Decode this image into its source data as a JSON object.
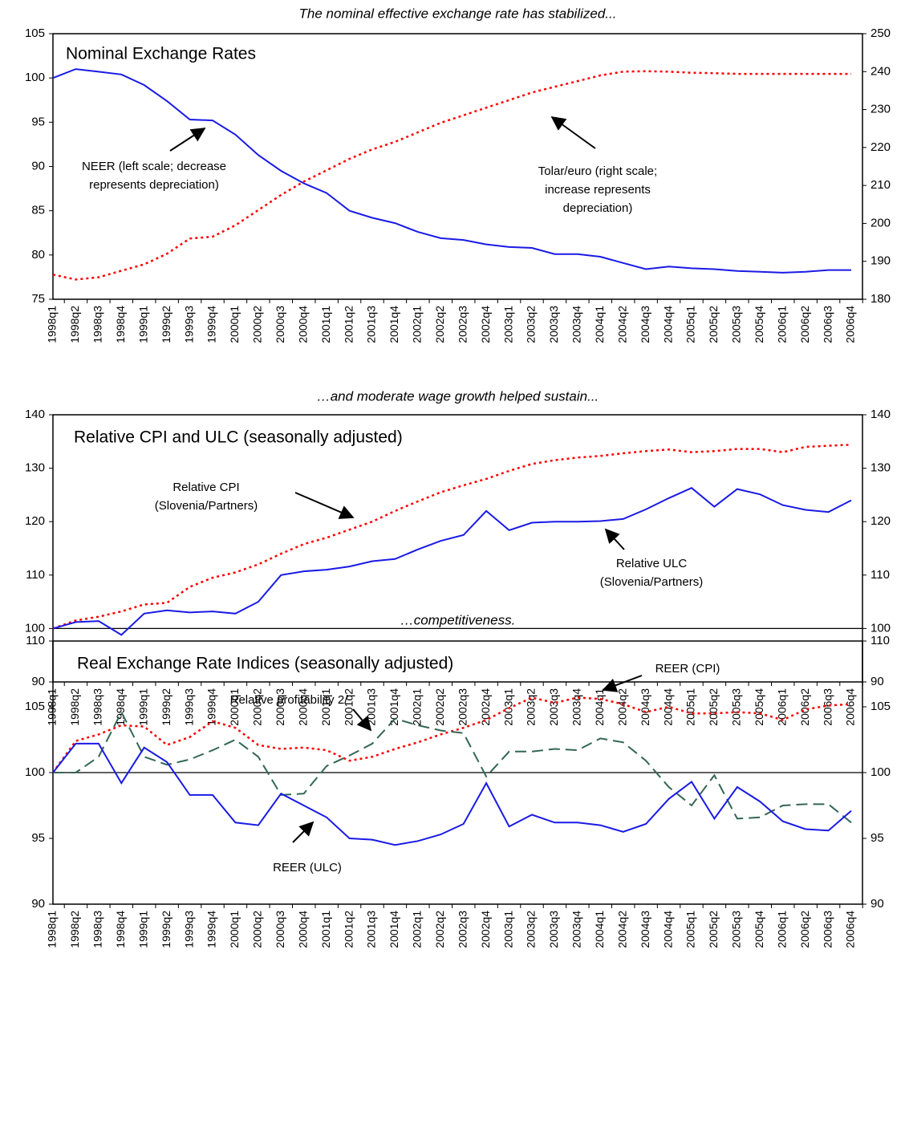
{
  "chart_data": [
    {
      "type": "line",
      "heading": "The nominal effective exchange rate has stabilized...",
      "title": "Nominal Exchange Rates",
      "categories": [
        "1998q1",
        "1998q2",
        "1998q3",
        "1998q4",
        "1999q1",
        "1999q2",
        "1999q3",
        "1999q4",
        "2000q1",
        "2000q2",
        "2000q3",
        "2000q4",
        "2001q1",
        "2001q2",
        "2001q3",
        "2001q4",
        "2002q1",
        "2002q2",
        "2002q3",
        "2002q4",
        "2003q1",
        "2003q2",
        "2003q3",
        "2003q4",
        "2004q1",
        "2004q2",
        "2004q3",
        "2004q4",
        "2005q1",
        "2005q2",
        "2005q3",
        "2005q4",
        "2006q1",
        "2006q2",
        "2006q3",
        "2006q4"
      ],
      "ylim": [
        75,
        105
      ],
      "yticks": [
        75,
        80,
        85,
        90,
        95,
        100,
        105
      ],
      "y2lim": [
        180,
        250
      ],
      "y2ticks": [
        180,
        190,
        200,
        210,
        220,
        230,
        240,
        250
      ],
      "series": [
        {
          "name": "NEER",
          "color": "#1a1ae6",
          "style": "solid",
          "values": [
            100,
            101,
            100.7,
            100.4,
            99.2,
            97.4,
            95.3,
            95.2,
            93.6,
            91.3,
            89.5,
            88.1,
            87.0,
            85.0,
            84.2,
            83.6,
            82.6,
            81.9,
            81.7,
            81.2,
            80.9,
            80.8,
            80.1,
            80.1,
            79.8,
            79.1,
            78.4,
            78.7,
            78.5,
            78.4,
            78.2,
            78.1,
            78.0,
            78.1,
            78.3,
            78.3
          ]
        },
        {
          "name": "Tolar/euro",
          "color": "#ff0000",
          "style": "dotted",
          "axis": "y2",
          "values": [
            186.5,
            185.2,
            185.8,
            187.5,
            189.2,
            192,
            196,
            196.5,
            199.5,
            203.5,
            207.5,
            211,
            214,
            217,
            219.5,
            221.5,
            224,
            226.5,
            228.5,
            230.5,
            232.5,
            234.5,
            236,
            237.5,
            239,
            240,
            240.1,
            240,
            239.7,
            239.6,
            239.4,
            239.4,
            239.4,
            239.4,
            239.4,
            239.4
          ]
        }
      ],
      "annotations": [
        {
          "lines": [
            "NEER (left scale; decrease",
            "represents depreciation)"
          ]
        },
        {
          "lines": [
            "Tolar/euro (right scale;",
            "increase represents",
            "depreciation)"
          ]
        }
      ]
    },
    {
      "type": "line",
      "heading": "…and moderate wage growth helped sustain...",
      "title": "Relative CPI and ULC (seasonally adjusted)",
      "categories": [
        "1998q1",
        "1998q2",
        "1998q3",
        "1998q4",
        "1999q1",
        "1999q2",
        "1999q3",
        "1999q4",
        "2000q1",
        "2000q2",
        "2000q3",
        "2000q4",
        "2001q1",
        "2001q2",
        "2001q3",
        "2001q4",
        "2002q1",
        "2002q2",
        "2002q3",
        "2002q4",
        "2003q1",
        "2003q2",
        "2003q3",
        "2003q4",
        "2004q1",
        "2004q2",
        "2004q3",
        "2004q4",
        "2005q1",
        "2005q2",
        "2005q3",
        "2005q4",
        "2006q1",
        "2006q2",
        "2006q3",
        "2006q4"
      ],
      "ylim": [
        90,
        140
      ],
      "yticks": [
        90,
        100,
        110,
        120,
        130,
        140
      ],
      "y2lim": [
        90,
        140
      ],
      "y2ticks": [
        90,
        100,
        110,
        120,
        130,
        140
      ],
      "reference_line": 100,
      "series": [
        {
          "name": "Relative CPI",
          "color": "#ff0000",
          "style": "dotted",
          "values": [
            100,
            101.5,
            102.2,
            103.2,
            104.5,
            104.8,
            107.8,
            109.5,
            110.5,
            112,
            114,
            115.8,
            117,
            118.5,
            120,
            122,
            123.8,
            125.5,
            126.8,
            128,
            129.5,
            130.8,
            131.5,
            132,
            132.3,
            132.8,
            133.2,
            133.5,
            133,
            133.2,
            133.6,
            133.6,
            133,
            134,
            134.2,
            134.4
          ]
        },
        {
          "name": "Relative ULC",
          "color": "#1a1ae6",
          "style": "solid",
          "values": [
            100,
            101.2,
            101.4,
            98.8,
            102.8,
            103.4,
            103,
            103.2,
            102.8,
            105,
            110,
            110.7,
            111,
            111.6,
            112.6,
            113,
            114.8,
            116.4,
            117.5,
            122,
            118.4,
            119.8,
            120,
            120,
            120.1,
            120.5,
            122.3,
            124.4,
            126.3,
            122.8,
            126.1,
            125.1,
            123.1,
            122.2,
            121.8,
            124
          ]
        }
      ],
      "annotations": [
        {
          "lines": [
            "Relative CPI",
            "(Slovenia/Partners)"
          ]
        },
        {
          "lines": [
            "Relative ULC",
            "(Slovenia/Partners)"
          ]
        }
      ]
    },
    {
      "type": "line",
      "heading": "…competitiveness.",
      "title": "Real Exchange Rate Indices (seasonally adjusted)",
      "categories": [
        "1998q1",
        "1998q2",
        "1998q3",
        "1998q4",
        "1999q1",
        "1999q2",
        "1999q3",
        "1999q4",
        "2000q1",
        "2000q2",
        "2000q3",
        "2000q4",
        "2001q1",
        "2001q2",
        "2001q3",
        "2001q4",
        "2002q1",
        "2002q2",
        "2002q3",
        "2002q4",
        "2003q1",
        "2003q2",
        "2003q3",
        "2003q4",
        "2004q1",
        "2004q2",
        "2004q3",
        "2004q4",
        "2005q1",
        "2005q2",
        "2005q3",
        "2005q4",
        "2006q1",
        "2006q2",
        "2006q3",
        "2006q4"
      ],
      "ylim": [
        90,
        110
      ],
      "yticks": [
        90,
        95,
        100,
        105,
        110
      ],
      "y2lim": [
        90,
        110
      ],
      "y2ticks": [
        90,
        95,
        100,
        105,
        110
      ],
      "reference_line": 100,
      "series": [
        {
          "name": "REER (CPI)",
          "color": "#ff0000",
          "style": "dotted",
          "values": [
            100,
            102.4,
            102.9,
            103.6,
            103.5,
            102.1,
            102.7,
            103.9,
            103.4,
            102.1,
            101.8,
            101.9,
            101.7,
            100.9,
            101.2,
            101.8,
            102.3,
            102.9,
            103.4,
            104,
            104.9,
            105.7,
            105.3,
            105.7,
            105.6,
            105.2,
            104.6,
            105,
            104.5,
            104.5,
            104.6,
            104.5,
            104,
            104.8,
            105.1,
            105.2
          ]
        },
        {
          "name": "Relative profitability 2/",
          "color": "#336655",
          "style": "dashed",
          "values": [
            100,
            100,
            101.2,
            104.6,
            101.2,
            100.6,
            101,
            101.7,
            102.5,
            101.2,
            98.3,
            98.4,
            100.5,
            101.3,
            102.2,
            104.1,
            103.6,
            103.2,
            103,
            99.7,
            101.6,
            101.6,
            101.8,
            101.7,
            102.6,
            102.3,
            100.9,
            98.9,
            97.5,
            99.8,
            96.5,
            96.6,
            97.5,
            97.6,
            97.6,
            96.2
          ]
        },
        {
          "name": "REER (ULC)",
          "color": "#1a1ae6",
          "style": "solid",
          "values": [
            100,
            102.2,
            102.2,
            99.2,
            101.9,
            100.8,
            98.3,
            98.3,
            96.2,
            96,
            98.4,
            97.5,
            96.6,
            95,
            94.9,
            94.5,
            94.8,
            95.3,
            96.1,
            99.2,
            95.9,
            96.8,
            96.2,
            96.2,
            96,
            95.5,
            96.1,
            98,
            99.3,
            96.5,
            98.9,
            97.8,
            96.3,
            95.7,
            95.6,
            97.1
          ]
        }
      ],
      "annotations": [
        {
          "lines": [
            "REER (CPI)"
          ]
        },
        {
          "lines": [
            "Relative profitability 2/"
          ]
        },
        {
          "lines": [
            "REER (ULC)"
          ]
        }
      ]
    }
  ]
}
